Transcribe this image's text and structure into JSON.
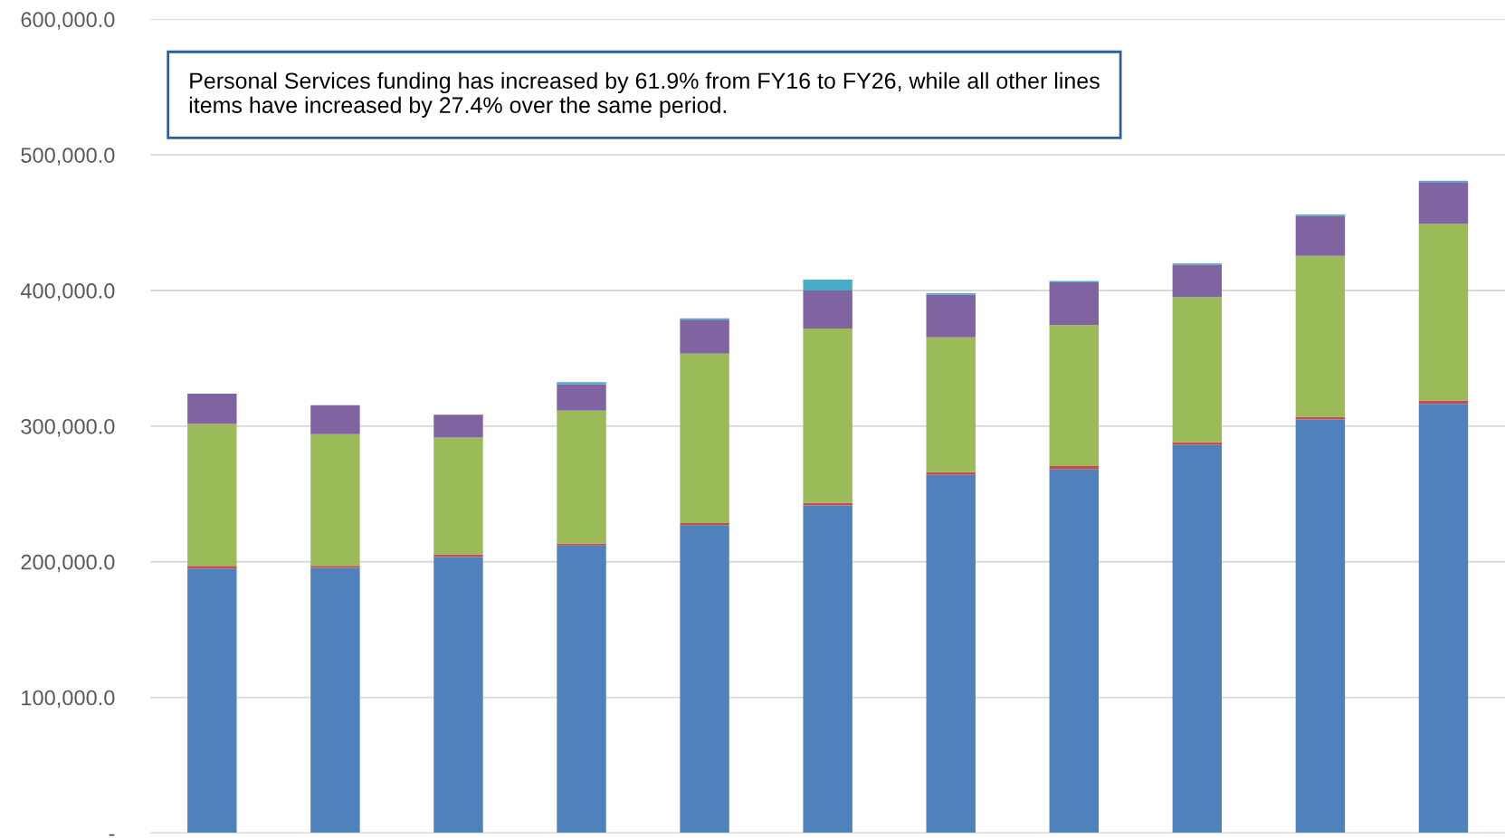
{
  "chart_data": {
    "type": "bar",
    "stacked": true,
    "categories": [
      null,
      null,
      null,
      null,
      null,
      null,
      null,
      null,
      null,
      null,
      null
    ],
    "series": [
      {
        "color": "#4f81bd",
        "values": [
          195000,
          195500,
          203500,
          212000,
          227000,
          241500,
          264000,
          268000,
          286000,
          305000,
          316500
        ]
      },
      {
        "color": "#c0504d",
        "values": [
          2000,
          1500,
          2000,
          1500,
          1500,
          2000,
          2000,
          2500,
          2000,
          2000,
          2500
        ]
      },
      {
        "color": "#9bbb59",
        "values": [
          104500,
          97000,
          86000,
          98000,
          125000,
          128500,
          99500,
          104000,
          107000,
          118500,
          130000
        ]
      },
      {
        "color": "#8064a2",
        "values": [
          22500,
          21500,
          17000,
          19500,
          25000,
          28000,
          31500,
          31500,
          24000,
          29500,
          31000
        ]
      },
      {
        "color": "#4bacc6",
        "values": [
          0,
          0,
          0,
          1500,
          1000,
          8000,
          1000,
          1000,
          1000,
          1000,
          1000
        ]
      }
    ],
    "ylim": [
      0,
      600000
    ],
    "yticks": [
      {
        "value": 0,
        "label": "-"
      },
      {
        "value": 100000,
        "label": "100,000.0"
      },
      {
        "value": 200000,
        "label": "200,000.0"
      },
      {
        "value": 300000,
        "label": "300,000.0"
      },
      {
        "value": 400000,
        "label": "400,000.0"
      },
      {
        "value": 500000,
        "label": "500,000.0"
      },
      {
        "value": 600000,
        "label": "600,000.0"
      }
    ],
    "grid": "y",
    "tick_labels": "y",
    "annotations": [
      "Personal Services funding has increased by 61.9% from FY16 to FY26, while all other lines items have increased by 27.4% over the same period."
    ]
  }
}
